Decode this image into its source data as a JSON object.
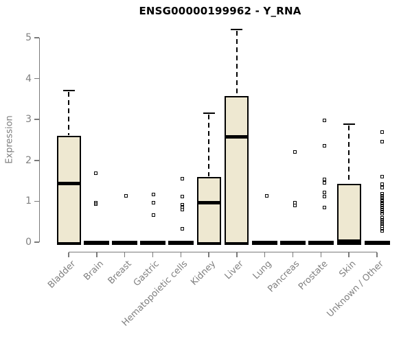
{
  "title": "ENSG00000199962 - Y_RNA",
  "colors": {
    "box_fill": "#EEE8D1",
    "box_border": "#000000",
    "axis": "#7a7a7a",
    "axis_text": "#7f7f7f",
    "title_text": "#000000",
    "background": "#ffffff"
  },
  "chart_data": {
    "type": "boxplot",
    "title": "ENSG00000199962 - Y_RNA",
    "xlabel": "",
    "ylabel": "Expression",
    "ylim": [
      0,
      5.3
    ],
    "yticks": [
      0,
      1,
      2,
      3,
      4,
      5
    ],
    "grid": false,
    "legend": "none",
    "categories": [
      "Bladder",
      "Brain",
      "Breast",
      "Gastric",
      "Hematopoietic cells",
      "Kidney",
      "Liver",
      "Lung",
      "Pancreas",
      "Prostate",
      "Skin",
      "Unknown / Other"
    ],
    "boxes": [
      {
        "category": "Bladder",
        "whisker_low": 0,
        "q1": 0,
        "median": 1.44,
        "q3": 2.6,
        "whisker_high": 3.7,
        "outliers": [],
        "x_offset": 0
      },
      {
        "category": "Brain",
        "whisker_low": 0,
        "q1": 0,
        "median": 0,
        "q3": 0,
        "whisker_high": 0,
        "outliers": [
          1.68,
          0.97,
          0.93
        ],
        "x_offset": -1
      },
      {
        "category": "Breast",
        "whisker_low": 0,
        "q1": 0,
        "median": 0,
        "q3": 0,
        "whisker_high": 0,
        "outliers": [
          1.13
        ],
        "x_offset": 2
      },
      {
        "category": "Gastric",
        "whisker_low": 0,
        "q1": 0,
        "median": 0,
        "q3": 0,
        "whisker_high": 0,
        "outliers": [
          1.17,
          0.97,
          0.67
        ],
        "x_offset": 1
      },
      {
        "category": "Hematopoietic cells",
        "whisker_low": 0,
        "q1": 0,
        "median": 0,
        "q3": 0,
        "whisker_high": 0,
        "outliers": [
          1.56,
          1.12,
          0.92,
          0.86,
          0.8,
          0.33
        ],
        "x_offset": 2
      },
      {
        "category": "Kidney",
        "whisker_low": 0,
        "q1": 0,
        "median": 0.97,
        "q3": 1.6,
        "whisker_high": 3.15,
        "outliers": [],
        "x_offset": 0
      },
      {
        "category": "Liver",
        "whisker_low": 0,
        "q1": 0,
        "median": 2.57,
        "q3": 3.57,
        "whisker_high": 5.2,
        "outliers": [],
        "x_offset": 0
      },
      {
        "category": "Lung",
        "whisker_low": 0,
        "q1": 0,
        "median": 0,
        "q3": 0,
        "whisker_high": 0,
        "outliers": [
          1.13
        ],
        "x_offset": 3
      },
      {
        "category": "Pancreas",
        "whisker_low": 0,
        "q1": 0,
        "median": 0,
        "q3": 0,
        "whisker_high": 0,
        "outliers": [
          2.21,
          0.96,
          0.9
        ],
        "x_offset": 3
      },
      {
        "category": "Prostate",
        "whisker_low": 0,
        "q1": 0,
        "median": 0,
        "q3": 0,
        "whisker_high": 0,
        "outliers": [
          2.97,
          2.35,
          1.54,
          1.45,
          1.22,
          1.11,
          0.84
        ],
        "x_offset": 5
      },
      {
        "category": "Skin",
        "whisker_low": 0,
        "q1": 0,
        "median": 0.02,
        "q3": 1.43,
        "whisker_high": 2.88,
        "outliers": [],
        "x_offset": 0
      },
      {
        "category": "Unknown / Other",
        "whisker_low": 0,
        "q1": 0,
        "median": 0,
        "q3": 0,
        "whisker_high": 0,
        "outliers": [
          2.7,
          2.45,
          1.61,
          1.42,
          1.34,
          1.19,
          1.14,
          1.09,
          1.04,
          0.99,
          0.94,
          0.89,
          0.84,
          0.79,
          0.74,
          0.69,
          0.6,
          0.55,
          0.5,
          0.45,
          0.4,
          0.33,
          0.27
        ],
        "x_offset": 7
      }
    ]
  }
}
